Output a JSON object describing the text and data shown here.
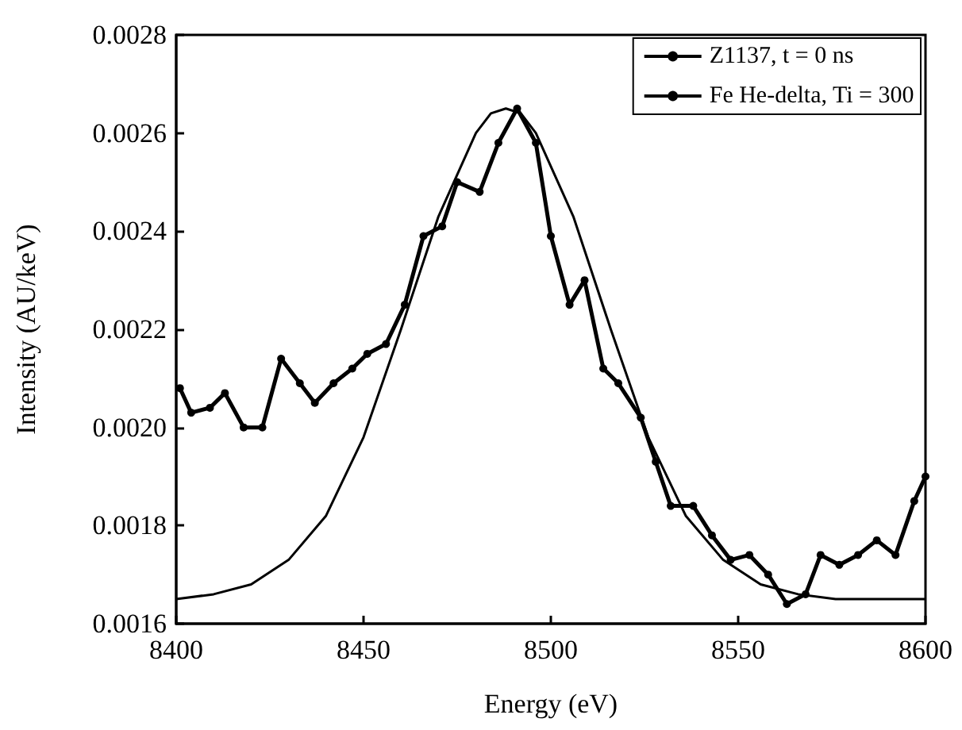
{
  "chart_data": {
    "type": "line",
    "xlabel": "Energy (eV)",
    "ylabel": "Intensity (AU/keV)",
    "xlim": [
      8400,
      8600
    ],
    "xticks": [
      8400,
      8450,
      8500,
      8550,
      8600
    ],
    "ylim": [
      0.0016,
      0.0028
    ],
    "yticks": [
      0.0016,
      0.0018,
      {
        "value": 0.002,
        "label": "0.0020"
      },
      0.0022,
      0.0024,
      0.0026,
      0.0028
    ],
    "grid": false,
    "legend": "top right",
    "series": [
      {
        "name": "Z1137, t = 0 ns",
        "color": "#000000",
        "marker": "circle",
        "line_style": "solid",
        "x": [
          8401,
          8404,
          8409,
          8413,
          8418,
          8423,
          8428,
          8433,
          8437,
          8442,
          8447,
          8451,
          8456,
          8461,
          8466,
          8471,
          8475,
          8481,
          8486,
          8491,
          8496,
          8500,
          8505,
          8509,
          8514,
          8518,
          8524,
          8528,
          8532,
          8538,
          8543,
          8548,
          8553,
          8558,
          8563,
          8568,
          8572,
          8577,
          8582,
          8587,
          8592,
          8597,
          8600
        ],
        "values": [
          0.00208,
          0.00203,
          0.00204,
          0.00207,
          0.002,
          0.002,
          0.00214,
          0.00209,
          0.00205,
          0.00209,
          0.00212,
          0.00215,
          0.00217,
          0.00225,
          0.00239,
          0.00241,
          0.0025,
          0.00248,
          0.00258,
          0.00265,
          0.00258,
          0.00239,
          0.00225,
          0.0023,
          0.00212,
          0.00209,
          0.00202,
          0.00193,
          0.00184,
          0.00184,
          0.00178,
          0.00173,
          0.00174,
          0.0017,
          0.00164,
          0.00166,
          0.00174,
          0.00172,
          0.00174,
          0.00177,
          0.00174,
          0.00185,
          0.0019
        ]
      },
      {
        "name": "Fe He-delta, Ti = 300",
        "color": "#000000",
        "marker": "none",
        "line_style": "solid",
        "x": [
          8400,
          8410,
          8420,
          8430,
          8440,
          8450,
          8460,
          8470,
          8480,
          8484,
          8488,
          8492,
          8496,
          8506,
          8516,
          8526,
          8536,
          8546,
          8556,
          8566,
          8576,
          8600
        ],
        "values": [
          0.00165,
          0.00166,
          0.00168,
          0.00173,
          0.00182,
          0.00198,
          0.0022,
          0.00243,
          0.0026,
          0.00264,
          0.00265,
          0.00264,
          0.0026,
          0.00243,
          0.0022,
          0.00198,
          0.00182,
          0.00173,
          0.00168,
          0.00166,
          0.00165,
          0.00165
        ]
      }
    ]
  }
}
